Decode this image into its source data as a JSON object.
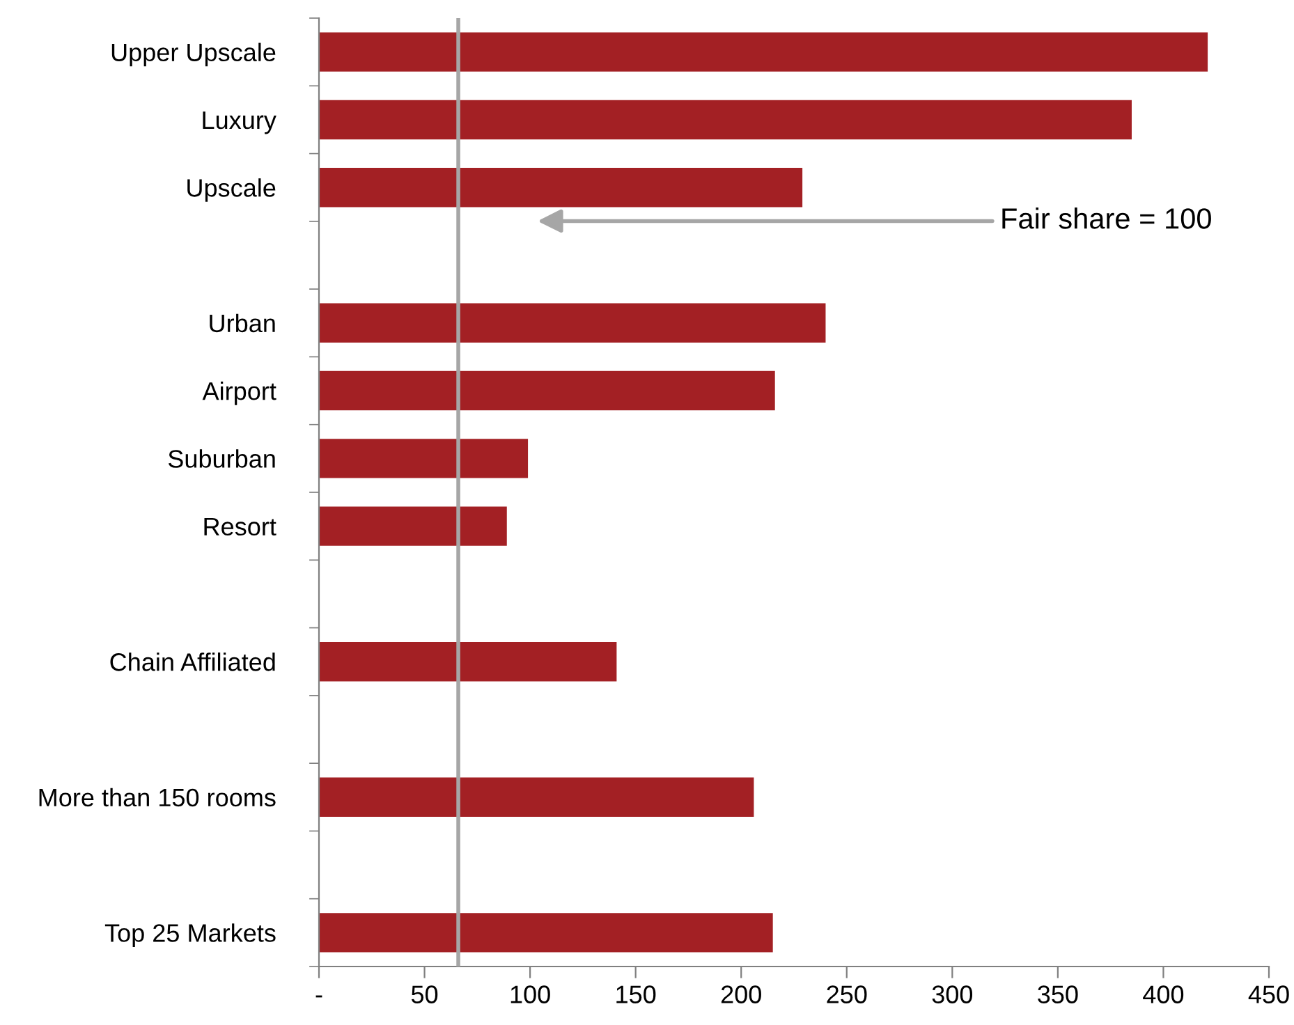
{
  "chart_data": {
    "type": "bar",
    "orientation": "horizontal",
    "categories": [
      "Upper Upscale",
      "Luxury",
      "Upscale",
      null,
      "Urban",
      "Airport",
      "Suburban",
      "Resort",
      null,
      "Chain Affiliated",
      null,
      "More than 150 rooms",
      null,
      "Top 25 Markets"
    ],
    "values": [
      421,
      385,
      229,
      null,
      240,
      216,
      99,
      89,
      null,
      141,
      null,
      206,
      null,
      215
    ],
    "color": "#a32024",
    "xlim": [
      0,
      450
    ],
    "xticks": [
      {
        "value": 0,
        "label": "-"
      },
      50,
      100,
      150,
      200,
      250,
      300,
      350,
      400,
      450
    ],
    "ref_lines": [
      {
        "axis": "x",
        "value": 66,
        "color": "#a6a6a6"
      }
    ],
    "annotations": [
      "Fair share = 100"
    ],
    "grid": false,
    "legend": false
  }
}
